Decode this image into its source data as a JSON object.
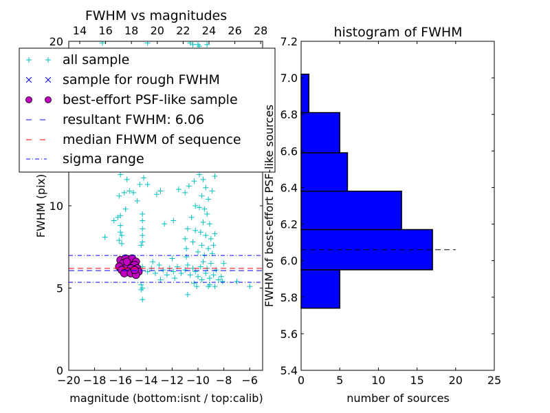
{
  "chart_data": [
    {
      "type": "scatter",
      "title": "FWHM vs magnitudes",
      "xlabel": "magnitude (bottom:isnt / top:calib)",
      "ylabel": "FWHM (pix)",
      "xlim": [
        -20,
        -5
      ],
      "ylim": [
        0,
        20
      ],
      "xticks": [
        "−20",
        "−18",
        "−16",
        "−14",
        "−12",
        "−10",
        "−8",
        "−6"
      ],
      "xtick_values": [
        -20,
        -18,
        -16,
        -14,
        -12,
        -10,
        -8,
        -6
      ],
      "yticks": [
        "0",
        "5",
        "10",
        "15",
        "20"
      ],
      "ytick_values": [
        0,
        5,
        10,
        15,
        20
      ],
      "top_xticks": [
        "14",
        "16",
        "18",
        "20",
        "22",
        "24",
        "26",
        "28"
      ],
      "top_xtick_values": [
        14,
        16,
        18,
        20,
        22,
        24,
        26,
        28
      ],
      "top_offset": 33.15,
      "legend": {
        "placement": "upper-left",
        "entries": [
          "all sample",
          "sample for rough FWHM",
          "best-effort PSF-like sample",
          "resultant FWHM: 6.06",
          "median FHWM of sequence",
          "sigma range"
        ]
      },
      "colors": {
        "all": "#00bfbf",
        "rough": "#0000ff",
        "best": "#bf00bf",
        "resultant": "#0000ff",
        "median": "#ff0000",
        "sigma": "#0000ff"
      },
      "resultant_fwhm": 6.06,
      "median_fwhm": 6.2,
      "sigma_range": [
        5.35,
        6.98
      ],
      "all_sample": [
        [
          -17.4,
          19.9
        ],
        [
          -13.9,
          19.9
        ],
        [
          -10.6,
          19.9
        ],
        [
          -10.4,
          19.8
        ],
        [
          -10.0,
          19.8
        ],
        [
          -9.3,
          19.8
        ],
        [
          -9.9,
          19.7
        ],
        [
          -16.0,
          11.9
        ],
        [
          -15.5,
          11.6
        ],
        [
          -14.2,
          11.7
        ],
        [
          -13.9,
          11.3
        ],
        [
          -14.5,
          11.3
        ],
        [
          -16.1,
          10.6
        ],
        [
          -15.7,
          10.8
        ],
        [
          -15.3,
          10.9
        ],
        [
          -15.0,
          10.8
        ],
        [
          -14.7,
          10.3
        ],
        [
          -13.2,
          10.7
        ],
        [
          -12.9,
          10.9
        ],
        [
          -11.5,
          11.0
        ],
        [
          -11.0,
          10.8
        ],
        [
          -10.7,
          11.2
        ],
        [
          -10.3,
          11.5
        ],
        [
          -9.9,
          11.9
        ],
        [
          -9.6,
          11.6
        ],
        [
          -9.4,
          11.1
        ],
        [
          -9.7,
          10.6
        ],
        [
          -9.2,
          10.4
        ],
        [
          -8.9,
          10.9
        ],
        [
          -8.7,
          11.8
        ],
        [
          -16.2,
          9.3
        ],
        [
          -16.0,
          9.4
        ],
        [
          -16.5,
          9.1
        ],
        [
          -15.6,
          9.8
        ],
        [
          -16.0,
          8.8
        ],
        [
          -16.0,
          8.4
        ],
        [
          -15.9,
          8.2
        ],
        [
          -16.1,
          7.9
        ],
        [
          -15.9,
          7.7
        ],
        [
          -17.2,
          8.1
        ],
        [
          -14.3,
          9.5
        ],
        [
          -14.3,
          9.1
        ],
        [
          -14.3,
          8.6
        ],
        [
          -14.3,
          8.2
        ],
        [
          -14.3,
          7.8
        ],
        [
          -14.4,
          7.6
        ],
        [
          -12.6,
          8.9
        ],
        [
          -11.9,
          9.1
        ],
        [
          -10.2,
          10.0
        ],
        [
          -10.5,
          9.3
        ],
        [
          -9.9,
          9.9
        ],
        [
          -9.5,
          9.8
        ],
        [
          -9.3,
          9.5
        ],
        [
          -9.6,
          9.0
        ],
        [
          -9.1,
          8.9
        ],
        [
          -10.8,
          8.6
        ],
        [
          -10.2,
          8.5
        ],
        [
          -9.8,
          8.4
        ],
        [
          -9.4,
          8.2
        ],
        [
          -9.0,
          8.0
        ],
        [
          -8.7,
          8.3
        ],
        [
          -11.0,
          8.0
        ],
        [
          -10.4,
          7.8
        ],
        [
          -9.7,
          7.6
        ],
        [
          -9.2,
          7.4
        ],
        [
          -8.8,
          7.6
        ],
        [
          -10.0,
          7.2
        ],
        [
          -9.5,
          7.0
        ],
        [
          -8.9,
          7.1
        ],
        [
          -10.9,
          7.4
        ],
        [
          -14.3,
          6.3
        ],
        [
          -13.9,
          6.0
        ],
        [
          -13.6,
          6.2
        ],
        [
          -13.3,
          5.9
        ],
        [
          -13.0,
          6.4
        ],
        [
          -12.7,
          6.1
        ],
        [
          -12.4,
          5.8
        ],
        [
          -12.2,
          6.2
        ],
        [
          -11.9,
          6.0
        ],
        [
          -11.6,
          6.3
        ],
        [
          -11.3,
          5.9
        ],
        [
          -11.0,
          6.1
        ],
        [
          -10.8,
          6.4
        ],
        [
          -10.6,
          5.8
        ],
        [
          -10.4,
          6.2
        ],
        [
          -10.2,
          6.0
        ],
        [
          -10.0,
          5.7
        ],
        [
          -9.8,
          6.3
        ],
        [
          -9.6,
          6.6
        ],
        [
          -9.4,
          5.9
        ],
        [
          -9.3,
          6.2
        ],
        [
          -9.1,
          5.6
        ],
        [
          -9.0,
          6.5
        ],
        [
          -8.8,
          5.8
        ],
        [
          -8.6,
          6.1
        ],
        [
          -8.4,
          5.5
        ],
        [
          -8.2,
          5.7
        ],
        [
          -8.1,
          5.4
        ],
        [
          -8.0,
          6.5
        ],
        [
          -9.7,
          5.5
        ],
        [
          -9.2,
          5.1
        ],
        [
          -10.3,
          5.3
        ],
        [
          -11.8,
          5.6
        ],
        [
          -12.9,
          5.5
        ],
        [
          -13.5,
          6.6
        ],
        [
          -12.0,
          6.8
        ],
        [
          -10.9,
          6.9
        ],
        [
          -14.4,
          5.2
        ],
        [
          -14.4,
          4.9
        ],
        [
          -14.3,
          5.0
        ],
        [
          -14.3,
          4.3
        ],
        [
          -10.8,
          4.6
        ],
        [
          -10.1,
          5.1
        ],
        [
          -9.1,
          5.2
        ],
        [
          -8.7,
          5.1
        ],
        [
          -7.0,
          5.4
        ],
        [
          -6.0,
          5.1
        ]
      ],
      "rough_sample": [],
      "best_sample": [
        [
          -16.0,
          6.7
        ],
        [
          -15.6,
          6.8
        ],
        [
          -15.1,
          6.8
        ],
        [
          -14.8,
          6.6
        ],
        [
          -15.8,
          6.5
        ],
        [
          -15.3,
          6.4
        ],
        [
          -14.9,
          6.4
        ],
        [
          -16.1,
          6.3
        ],
        [
          -15.6,
          6.2
        ],
        [
          -15.2,
          6.2
        ],
        [
          -14.7,
          6.2
        ],
        [
          -15.9,
          6.1
        ],
        [
          -15.4,
          6.0
        ],
        [
          -15.0,
          6.0
        ],
        [
          -14.6,
          6.0
        ],
        [
          -15.7,
          5.9
        ],
        [
          -15.2,
          5.9
        ],
        [
          -14.8,
          5.8
        ],
        [
          -15.5,
          6.6
        ],
        [
          -14.9,
          6.1
        ]
      ]
    },
    {
      "type": "bar",
      "orientation": "horizontal",
      "title": "histogram of FWHM",
      "xlabel": "number of sources",
      "ylabel": "FWHM of best-effort PSF-like sources",
      "xlim": [
        0,
        25
      ],
      "ylim": [
        5.4,
        7.2
      ],
      "xticks": [
        "0",
        "5",
        "10",
        "15",
        "20",
        "25"
      ],
      "xtick_values": [
        0,
        5,
        10,
        15,
        20,
        25
      ],
      "yticks": [
        "5.4",
        "5.6",
        "5.8",
        "6.0",
        "6.2",
        "6.4",
        "6.6",
        "6.8",
        "7.0",
        "7.2"
      ],
      "ytick_values": [
        5.4,
        5.6,
        5.8,
        6.0,
        6.2,
        6.4,
        6.6,
        6.8,
        7.0,
        7.2
      ],
      "bins": [
        [
          5.74,
          5.95
        ],
        [
          5.95,
          6.17
        ],
        [
          6.17,
          6.38
        ],
        [
          6.38,
          6.59
        ],
        [
          6.59,
          6.81
        ],
        [
          6.81,
          7.02
        ]
      ],
      "counts": [
        5,
        17,
        13,
        6,
        5,
        1
      ],
      "bar_color": "#0000ff",
      "fwhm_line": {
        "value": 6.06,
        "extent": [
          0,
          20
        ],
        "color": "#000000"
      }
    }
  ]
}
